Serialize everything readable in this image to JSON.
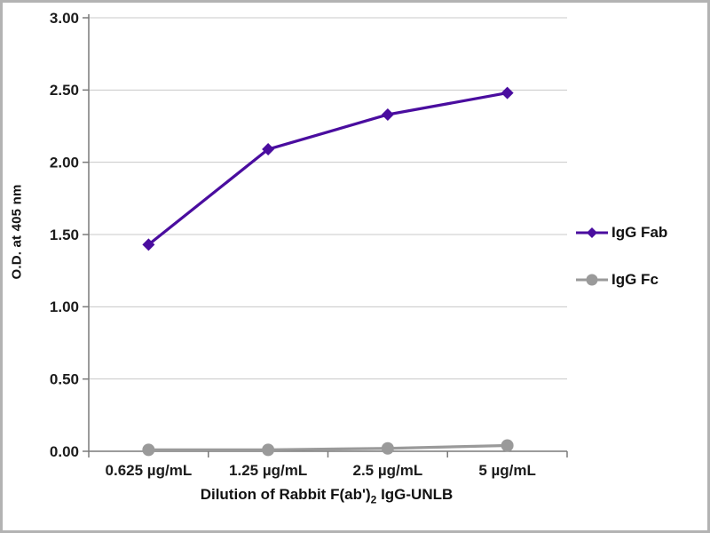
{
  "chart_data": {
    "type": "line",
    "title": "",
    "categories": [
      "0.625 µg/mL",
      "1.25 µg/mL",
      "2.5 µg/mL",
      "5 µg/mL"
    ],
    "series": [
      {
        "name": "IgG Fab",
        "values": [
          1.43,
          2.09,
          2.33,
          2.48
        ],
        "color": "#4a0d9f",
        "marker": "diamond"
      },
      {
        "name": "IgG Fc",
        "values": [
          0.01,
          0.01,
          0.02,
          0.04
        ],
        "color": "#9a9a9a",
        "marker": "circle"
      }
    ],
    "xlabel": "Dilution of Rabbit F(ab')2 IgG-UNLB",
    "ylabel": "O.D. at 405 nm",
    "ylim": [
      0,
      3
    ],
    "ytick_step": 0.5,
    "ytick_labels": [
      "0.00",
      "0.50",
      "1.00",
      "1.50",
      "2.00",
      "2.50",
      "3.00"
    ],
    "grid": true,
    "legend_position": "right"
  },
  "xlabel_parts": {
    "prefix": "Dilution of Rabbit F(ab')",
    "sub": "2",
    "suffix": " IgG-UNLB"
  }
}
